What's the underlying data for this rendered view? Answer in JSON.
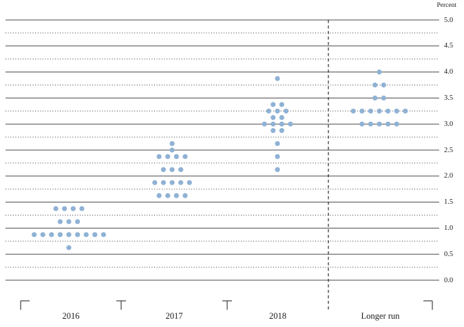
{
  "unit_label": "Percent",
  "chart_data": {
    "type": "scatter",
    "subtype": "fomc-dot-plot",
    "ylabel": "Percent",
    "ylim": [
      0.0,
      5.0
    ],
    "grid_step": 0.25,
    "label_step": 0.5,
    "grid_style": "solid lines at each 0.5, dotted lines at each odd 0.25",
    "legend_position": "none",
    "ytick_labels": [
      "5.0",
      "4.5",
      "4.0",
      "3.5",
      "3.0",
      "2.5",
      "2.0",
      "1.5",
      "1.0",
      "0.5",
      "0.0"
    ],
    "categories": [
      "2016",
      "2017",
      "2018",
      "Longer run"
    ],
    "separator_before_category": "Longer run",
    "dot_color": "#8fb2d4",
    "dot_spacing": 12.6,
    "dot_radius": 3.6,
    "series": [
      {
        "category": "2016",
        "dots": {
          "1.375": 4,
          "1.125": 3,
          "0.875": 9,
          "0.625": 1
        }
      },
      {
        "category": "2017",
        "dots": {
          "2.625": 1,
          "2.5": 1,
          "2.375": 4,
          "2.125": 3,
          "1.875": 5,
          "1.625": 4
        }
      },
      {
        "category": "2018",
        "dots": {
          "3.875": 1,
          "3.375": 2,
          "3.25": 3,
          "3.125": 2,
          "3.0": 4,
          "2.875": 2,
          "2.625": 1,
          "2.375": 1,
          "2.125": 1
        }
      },
      {
        "category": "Longer run",
        "dots": {
          "4.0": 1,
          "3.75": 2,
          "3.5": 2,
          "3.25": 7,
          "3.0": 5
        }
      }
    ]
  }
}
